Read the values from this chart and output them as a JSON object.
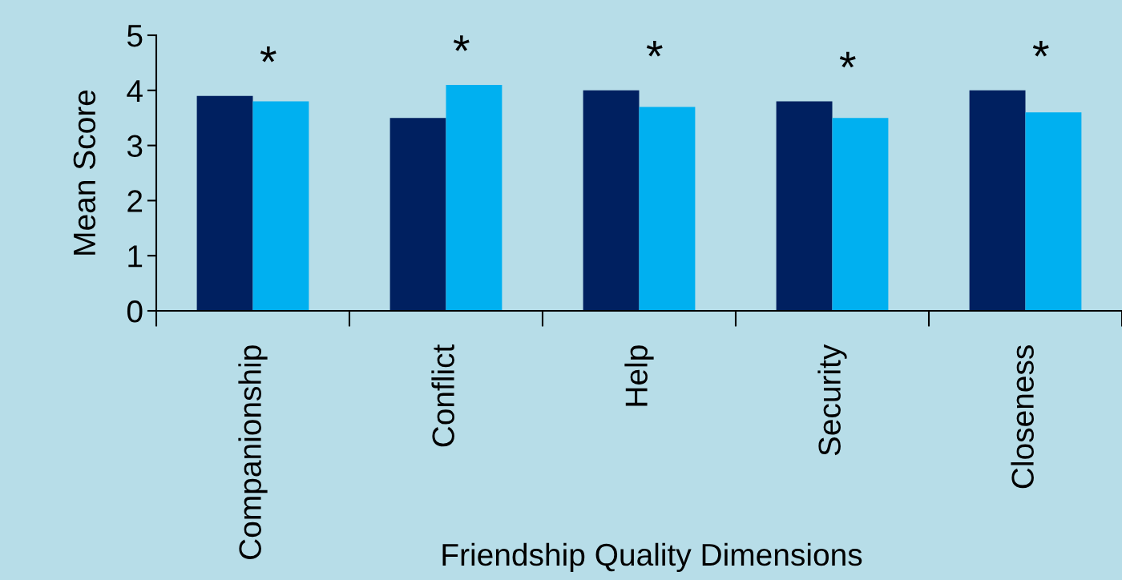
{
  "chart_data": {
    "type": "bar",
    "xlabel": "Friendship Quality Dimensions",
    "ylabel": "Mean Score",
    "categories": [
      "Companionship",
      "Conflict",
      "Help",
      "Security",
      "Closeness"
    ],
    "series": [
      {
        "color": "#002060",
        "values": [
          3.9,
          3.5,
          4.0,
          3.8,
          4.0
        ]
      },
      {
        "color": "#00b0f0",
        "values": [
          3.8,
          4.1,
          3.7,
          3.5,
          3.6
        ]
      }
    ],
    "ylim": [
      0,
      5
    ],
    "yticks": [
      0,
      1,
      2,
      3,
      4,
      5
    ],
    "grid": false,
    "annotations": [
      "*",
      "*",
      "*",
      "*",
      "*"
    ]
  }
}
